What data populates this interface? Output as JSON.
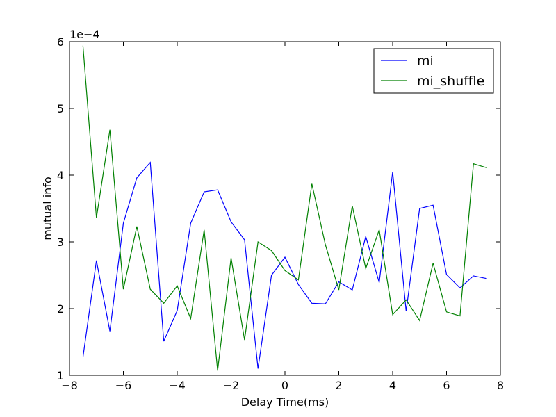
{
  "chart_data": {
    "type": "line",
    "title": "",
    "xlabel": "Delay Time(ms)",
    "ylabel": "mutual info",
    "y_offset_text": "1e−4",
    "xlim": [
      -8,
      8
    ],
    "ylim": [
      1,
      6
    ],
    "x_ticks": [
      -8,
      -6,
      -4,
      -2,
      0,
      2,
      4,
      6,
      8
    ],
    "x_tick_labels": [
      "−8",
      "−6",
      "−4",
      "−2",
      "0",
      "2",
      "4",
      "6",
      "8"
    ],
    "y_ticks": [
      1,
      2,
      3,
      4,
      5,
      6
    ],
    "y_tick_labels": [
      "1",
      "2",
      "3",
      "4",
      "5",
      "6"
    ],
    "grid": false,
    "legend_position": "top-right",
    "x": [
      -7.5,
      -7.0,
      -6.5,
      -6.0,
      -5.5,
      -5.0,
      -4.5,
      -4.0,
      -3.5,
      -3.0,
      -2.5,
      -2.0,
      -1.5,
      -1.0,
      -0.5,
      0.0,
      0.5,
      1.0,
      1.5,
      2.0,
      2.5,
      3.0,
      3.5,
      4.0,
      4.5,
      5.0,
      5.5,
      6.0,
      6.5,
      7.0,
      7.5
    ],
    "series": [
      {
        "name": "mi",
        "color": "#0000ff",
        "values": [
          1.27,
          2.72,
          1.66,
          3.28,
          3.96,
          4.19,
          1.51,
          1.97,
          3.28,
          3.75,
          3.78,
          3.3,
          3.03,
          1.1,
          2.5,
          2.77,
          2.36,
          2.08,
          2.07,
          2.4,
          2.28,
          3.08,
          2.39,
          4.05,
          1.96,
          3.5,
          3.55,
          2.51,
          2.31,
          2.49,
          2.45
        ]
      },
      {
        "name": "mi_shuffle",
        "color": "#008000",
        "values": [
          5.94,
          3.36,
          4.68,
          2.29,
          3.23,
          2.29,
          2.08,
          2.34,
          1.85,
          3.18,
          1.07,
          2.76,
          1.53,
          3.0,
          2.87,
          2.57,
          2.43,
          3.87,
          2.96,
          2.28,
          3.54,
          2.6,
          3.18,
          1.91,
          2.13,
          1.82,
          2.68,
          1.95,
          1.89,
          4.17,
          4.11
        ]
      }
    ]
  }
}
